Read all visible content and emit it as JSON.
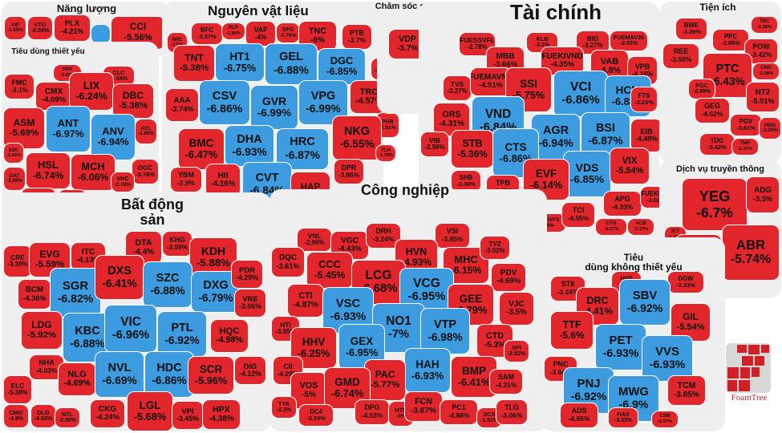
{
  "colors": {
    "floor": "#3d9be0",
    "down": "#e2262b",
    "panel": "#efefef"
  },
  "chart_data": {
    "type": "treemap",
    "value_label": "% change",
    "groups": [
      {
        "name": "Năng lượng",
        "stocks": [
          {
            "t": "VIP",
            "c": "-1.65%"
          },
          {
            "t": "VTO",
            "c": "-2.58%"
          },
          {
            "t": "PLX",
            "c": "-4.21%"
          },
          {
            "t": "",
            "c": "",
            "floor": true
          },
          {
            "t": "CCI",
            "c": "-5.56%"
          }
        ]
      },
      {
        "name": "Tiêu dùng thiết yếu",
        "stocks": [
          {
            "t": "FMC",
            "c": "-3.1%"
          },
          {
            "t": "HPA",
            "c": "-2.83%"
          },
          {
            "t": "CLC",
            "c": "-3.64%"
          },
          {
            "t": "CMX",
            "c": "-4.09%"
          },
          {
            "t": "LIX",
            "c": "-6.24%"
          },
          {
            "t": "DBC",
            "c": "-5.38%"
          },
          {
            "t": "ASM",
            "c": "-5.69%"
          },
          {
            "t": "ANT",
            "c": "-6.97%",
            "floor": true
          },
          {
            "t": "ANV",
            "c": "-6.94%",
            "floor": true
          },
          {
            "t": "ACL",
            "c": "-2.96%"
          },
          {
            "t": "SSC",
            "c": "-2.43%"
          },
          {
            "t": "HSL",
            "c": "-6.74%"
          },
          {
            "t": "MCH",
            "c": "-6.06%"
          },
          {
            "t": "OGC",
            "c": "-3.78%"
          },
          {
            "t": "VHC",
            "c": "-2.78%"
          },
          {
            "t": "DAT",
            "c": "-3.69%"
          },
          {
            "t": "IDI",
            "c": "-5.1%"
          },
          {
            "t": "ABT",
            "c": "-3.12%"
          },
          {
            "t": "BAF",
            "c": "-2.86%"
          }
        ]
      },
      {
        "name": "Nguyên vật liệu",
        "stocks": [
          {
            "t": "NNC",
            "c": "-1.5%"
          },
          {
            "t": "BFC",
            "c": "-3.07%"
          },
          {
            "t": "PLP",
            "c": "-1.89%"
          },
          {
            "t": "VAF",
            "c": "-4%"
          },
          {
            "t": "SFG",
            "c": "-2.76%"
          },
          {
            "t": "TNC",
            "c": "-6%"
          },
          {
            "t": "PTB",
            "c": "-3.7%"
          },
          {
            "t": "TNT",
            "c": "-5.38%"
          },
          {
            "t": "HT1",
            "c": "-6.75%",
            "floor": true
          },
          {
            "t": "GEL",
            "c": "-6.88%",
            "floor": true
          },
          {
            "t": "DGC",
            "c": "-6.85%",
            "floor": true
          },
          {
            "t": "SVT",
            "c": "-2.21%"
          },
          {
            "t": "AAA",
            "c": "-3.74%"
          },
          {
            "t": "CSV",
            "c": "-6.86%",
            "floor": true
          },
          {
            "t": "GVR",
            "c": "-6.99%",
            "floor": true
          },
          {
            "t": "VPG",
            "c": "-6.99%",
            "floor": true
          },
          {
            "t": "TRC",
            "c": "-4.57%"
          },
          {
            "t": "PHR",
            "c": "-2.91%"
          },
          {
            "t": "BMC",
            "c": "-6.47%"
          },
          {
            "t": "DHA",
            "c": "-6.93%",
            "floor": true
          },
          {
            "t": "HRC",
            "c": "-6.87%",
            "floor": true
          },
          {
            "t": "NKG",
            "c": "-6.55%"
          },
          {
            "t": "TLH",
            "c": "-1.78%"
          },
          {
            "t": "YBM",
            "c": "-2.9%"
          },
          {
            "t": "HII",
            "c": "-4.16%"
          },
          {
            "t": "CVT",
            "c": "-6.84%",
            "floor": true
          },
          {
            "t": "HAP",
            "c": "-5.6%"
          },
          {
            "t": "DPR",
            "c": "-3.86%"
          },
          {
            "t": "DHC",
            "c": "-1.91%"
          },
          {
            "t": "HHP",
            "c": "-3.32%"
          }
        ]
      },
      {
        "name": "Chăm sóc sức khỏe",
        "stocks": [
          {
            "t": "DCL",
            "c": "-2.1%"
          },
          {
            "t": "VDP",
            "c": "-3.7%"
          }
        ]
      },
      {
        "name": "Tài chính",
        "stocks": [
          {
            "t": "FUESSVFL",
            "c": "-2.78%"
          },
          {
            "t": "KLB",
            "c": "-3.1%"
          },
          {
            "t": "BID",
            "c": "-3.27%"
          },
          {
            "t": "FUEMAV30",
            "c": "-2.91%"
          },
          {
            "t": "MBB",
            "c": "-3.66%"
          },
          {
            "t": "FUEKIVND",
            "c": "-4.35%"
          },
          {
            "t": "VAB",
            "c": "-4.8%"
          },
          {
            "t": "VPB",
            "c": "-4.19%"
          },
          {
            "t": "TVS",
            "c": "-3.27%"
          },
          {
            "t": "FUEMAVND",
            "c": "-4.51%"
          },
          {
            "t": "SSI",
            "c": "-5.75%"
          },
          {
            "t": "VCI",
            "c": "-6.86%",
            "floor": true
          },
          {
            "t": "HCM",
            "c": "-6.83%",
            "floor": true
          },
          {
            "t": "FTS",
            "c": "-3.23%"
          },
          {
            "t": "ORS",
            "c": "-4.31%"
          },
          {
            "t": "VND",
            "c": "-6.84%",
            "floor": true
          },
          {
            "t": "AGR",
            "c": "-6.94%",
            "floor": true
          },
          {
            "t": "BSI",
            "c": "-6.87%",
            "floor": true
          },
          {
            "t": "EIB",
            "c": "-4.49%"
          },
          {
            "t": "BMI",
            "c": "-2.74%"
          },
          {
            "t": "VIB",
            "c": "-2.98%"
          },
          {
            "t": "STB",
            "c": "-5.36%"
          },
          {
            "t": "CTS",
            "c": "-6.86%",
            "floor": true
          },
          {
            "t": "VDS",
            "c": "-6.85%",
            "floor": true
          },
          {
            "t": "VIX",
            "c": "-5.54%"
          },
          {
            "t": "EVF",
            "c": "-6.14%"
          },
          {
            "t": "SHB",
            "c": "-3.36%"
          },
          {
            "t": "TPB",
            "c": "-4.43%"
          },
          {
            "t": "APG",
            "c": "-4.33%"
          },
          {
            "t": "FUEKIV30",
            "c": "-3.02%"
          },
          {
            "t": "TCB",
            "c": "-3.18%"
          },
          {
            "t": "FUEKIVFS",
            "c": "-3.89%"
          },
          {
            "t": "TCI",
            "c": "-4.55%"
          },
          {
            "t": "CTG",
            "c": "-3.27%"
          },
          {
            "t": "ACB",
            "c": "-2.17%"
          },
          {
            "t": "HDB",
            "c": "-2.8%"
          }
        ]
      },
      {
        "name": "Tiện ích",
        "stocks": [
          {
            "t": "BWE",
            "c": "-3.26%"
          },
          {
            "t": "TBC",
            "c": "-2.38%"
          },
          {
            "t": "PPC",
            "c": "-3.65%"
          },
          {
            "t": "POW",
            "c": "-3.42%"
          },
          {
            "t": "REE",
            "c": "-3.56%"
          },
          {
            "t": "PTC",
            "c": "-6.43%"
          },
          {
            "t": "CNG",
            "c": "-2.08%"
          },
          {
            "t": "PGC",
            "c": "-2.89%"
          },
          {
            "t": "NT2",
            "c": "-5.01%"
          },
          {
            "t": "GEG",
            "c": "-4.52%"
          },
          {
            "t": "PGV",
            "c": "-3.61%"
          },
          {
            "t": "HDG",
            "c": "-3.26%"
          },
          {
            "t": "TDG",
            "c": "-3.42%"
          },
          {
            "t": "TMP",
            "c": "-2.27%"
          }
        ]
      },
      {
        "name": "Dịch vụ truyền thông",
        "stocks": [
          {
            "t": "YEG",
            "c": "-6.7%"
          },
          {
            "t": "ADG",
            "c": "-3.3%"
          },
          {
            "t": "ICT",
            "c": "-1.11%"
          },
          {
            "t": "SGT",
            "c": "-3.83%"
          },
          {
            "t": "ABR",
            "c": "-5.74%"
          }
        ]
      },
      {
        "name": "Bất động sản",
        "stocks": [
          {
            "t": "CRE",
            "c": "-3.39%"
          },
          {
            "t": "EVG",
            "c": "-5.59%"
          },
          {
            "t": "ITC",
            "c": "-4.13%"
          },
          {
            "t": "DTA",
            "c": "-4.4%"
          },
          {
            "t": "KHG",
            "c": "-3.59%"
          },
          {
            "t": "KDH",
            "c": "-5.88%"
          },
          {
            "t": "BCM",
            "c": "-4.36%"
          },
          {
            "t": "SGR",
            "c": "-6.82%",
            "floor": true
          },
          {
            "t": "DXS",
            "c": "-6.41%"
          },
          {
            "t": "SZC",
            "c": "-6.88%",
            "floor": true
          },
          {
            "t": "DXG",
            "c": "-6.79%",
            "floor": true
          },
          {
            "t": "PDR",
            "c": "-4.29%"
          },
          {
            "t": "VRE",
            "c": "-3.06%"
          },
          {
            "t": "LDG",
            "c": "-5.92%"
          },
          {
            "t": "KBC",
            "c": "-6.88%",
            "floor": true
          },
          {
            "t": "VIC",
            "c": "-6.96%",
            "floor": true
          },
          {
            "t": "PTL",
            "c": "-6.92%",
            "floor": true
          },
          {
            "t": "HQC",
            "c": "-4.98%"
          },
          {
            "t": "NHA",
            "c": "-4.03%"
          },
          {
            "t": "NLG",
            "c": "-4.69%"
          },
          {
            "t": "NVL",
            "c": "-6.69%",
            "floor": true
          },
          {
            "t": "HDC",
            "c": "-6.86%",
            "floor": true
          },
          {
            "t": "SCR",
            "c": "-5.96%"
          },
          {
            "t": "DIG",
            "c": "-4.12%"
          },
          {
            "t": "ELC",
            "c": "-5.38%"
          },
          {
            "t": "CMG",
            "c": "-4.9%"
          },
          {
            "t": "DLG",
            "c": "-4.92%"
          },
          {
            "t": "NTL",
            "c": "-2.56%"
          },
          {
            "t": "CKG",
            "c": "-4.24%"
          },
          {
            "t": "LGL",
            "c": "-5.68%"
          },
          {
            "t": "VPI",
            "c": "-3.45%"
          },
          {
            "t": "HPX",
            "c": "-4.38%"
          }
        ]
      },
      {
        "name": "Công nghiệp",
        "stocks": [
          {
            "t": "VNL",
            "c": "-2.99%"
          },
          {
            "t": "VGC",
            "c": "-4.43%"
          },
          {
            "t": "DRH",
            "c": "-3.24%"
          },
          {
            "t": "VSI",
            "c": "-3.85%"
          },
          {
            "t": "DQC",
            "c": "-3.61%"
          },
          {
            "t": "CCC",
            "c": "-5.45%"
          },
          {
            "t": "HVN",
            "c": "-4.93%"
          },
          {
            "t": "MHC",
            "c": "-6.15%"
          },
          {
            "t": "TV2",
            "c": "-3.02%"
          },
          {
            "t": "LCG",
            "c": "-6.68%"
          },
          {
            "t": "PDV",
            "c": "-4.69%"
          },
          {
            "t": "CTI",
            "c": "-4.87%"
          },
          {
            "t": "VSC",
            "c": "-6.93%",
            "floor": true
          },
          {
            "t": "VCG",
            "c": "-6.95%",
            "floor": true
          },
          {
            "t": "GEE",
            "c": "-6.79%"
          },
          {
            "t": "VJC",
            "c": "-3.5%"
          },
          {
            "t": "HTI",
            "c": "-3.05%"
          },
          {
            "t": "NO1",
            "c": "-7%",
            "floor": true
          },
          {
            "t": "VTP",
            "c": "-6.98%",
            "floor": true
          },
          {
            "t": "CTD",
            "c": "-5.3%"
          },
          {
            "t": "HHV",
            "c": "-6.25%"
          },
          {
            "t": "GEX",
            "c": "-6.95%",
            "floor": true
          },
          {
            "t": "SFI",
            "c": "-2.82%"
          },
          {
            "t": "CII",
            "c": "-4.29%"
          },
          {
            "t": "HAH",
            "c": "-6.93%",
            "floor": true
          },
          {
            "t": "PAC",
            "c": "-5.77%"
          },
          {
            "t": "BMP",
            "c": "-6.41%"
          },
          {
            "t": "SAM",
            "c": "-4.31%"
          },
          {
            "t": "VOS",
            "c": "-5%"
          },
          {
            "t": "GMD",
            "c": "-6.74%"
          },
          {
            "t": "TYA",
            "c": "-2.3%"
          },
          {
            "t": "DC4",
            "c": "-3.33%"
          },
          {
            "t": "DPG",
            "c": "-4.53%"
          },
          {
            "t": "HTN",
            "c": "-3%"
          },
          {
            "t": "FCN",
            "c": "-3.67%"
          },
          {
            "t": "PC1",
            "c": "-4.88%"
          },
          {
            "t": "SCS",
            "c": "-1.91%"
          },
          {
            "t": "TLG",
            "c": "-3.06%"
          }
        ]
      },
      {
        "name": "Tiêu dùng không thiết yếu",
        "name_lines": [
          "Tiêu",
          "dùng không thiết yếu"
        ],
        "stocks": [
          {
            "t": "ST8",
            "c": "-3.24%"
          },
          {
            "t": "HHS",
            "c": "-2.26%"
          },
          {
            "t": "DGW",
            "c": "-3.33%"
          },
          {
            "t": "DRC",
            "c": "-4.41%"
          },
          {
            "t": "SBV",
            "c": "-6.92%",
            "floor": true
          },
          {
            "t": "TTF",
            "c": "-5.6%"
          },
          {
            "t": "GIL",
            "c": "-5.54%"
          },
          {
            "t": "PET",
            "c": "-6.93%",
            "floor": true
          },
          {
            "t": "VVS",
            "c": "-6.93%",
            "floor": true
          },
          {
            "t": "PNC",
            "c": "-3.64%"
          },
          {
            "t": "PNJ",
            "c": "-6.92%",
            "floor": true
          },
          {
            "t": "MWG",
            "c": "-6.9%",
            "floor": true
          },
          {
            "t": "TCM",
            "c": "-3.85%"
          },
          {
            "t": "ADS",
            "c": "-4.65%"
          },
          {
            "t": "HAX",
            "c": "-3.33%"
          },
          {
            "t": "CSM",
            "c": "-2.07%"
          }
        ]
      }
    ]
  },
  "logo": {
    "text": "FoamTree"
  }
}
